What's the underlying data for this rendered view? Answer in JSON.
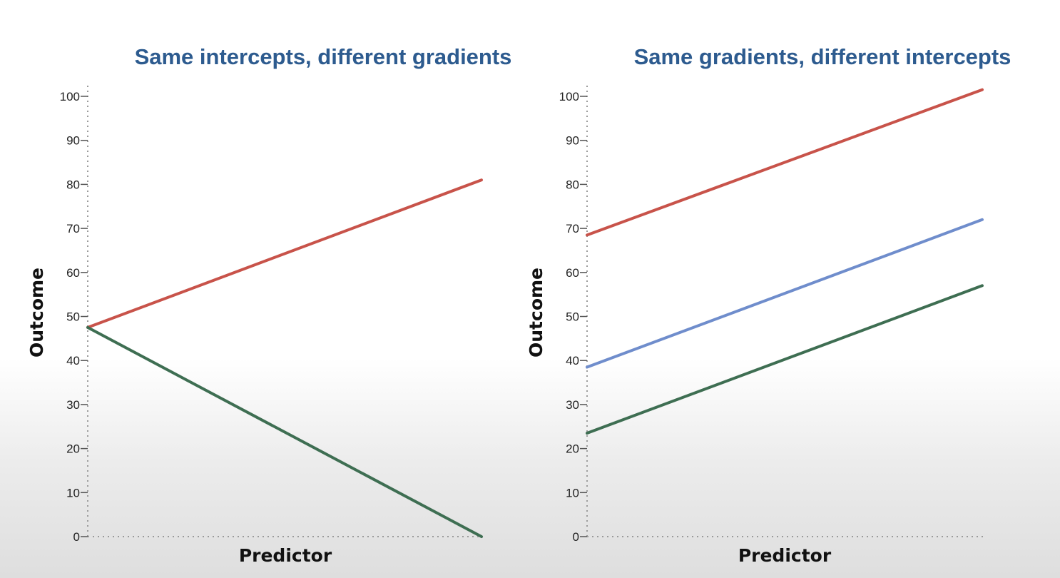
{
  "chart_data": [
    {
      "type": "line",
      "title": "Same intercepts, different gradients",
      "xlabel": "Predictor",
      "ylabel": "Outcome",
      "ylim": [
        0,
        105
      ],
      "yticks": [
        0,
        10,
        20,
        30,
        40,
        50,
        60,
        70,
        80,
        90,
        100
      ],
      "x": [
        0,
        1
      ],
      "grid": false,
      "series": [
        {
          "color": "#c8534a",
          "values": [
            47.5,
            81
          ]
        },
        {
          "color": "#3e6e52",
          "values": [
            47.5,
            0
          ]
        }
      ]
    },
    {
      "type": "line",
      "title": "Same gradients, different intercepts",
      "xlabel": "Predictor",
      "ylabel": "Outcome",
      "ylim": [
        0,
        105
      ],
      "yticks": [
        0,
        10,
        20,
        30,
        40,
        50,
        60,
        70,
        80,
        90,
        100
      ],
      "x": [
        0,
        1
      ],
      "grid": false,
      "series": [
        {
          "color": "#c8534a",
          "values": [
            68.5,
            101.5
          ]
        },
        {
          "color": "#6f8dcc",
          "values": [
            38.5,
            72
          ]
        },
        {
          "color": "#3e6e52",
          "values": [
            23.5,
            57
          ]
        }
      ]
    }
  ]
}
